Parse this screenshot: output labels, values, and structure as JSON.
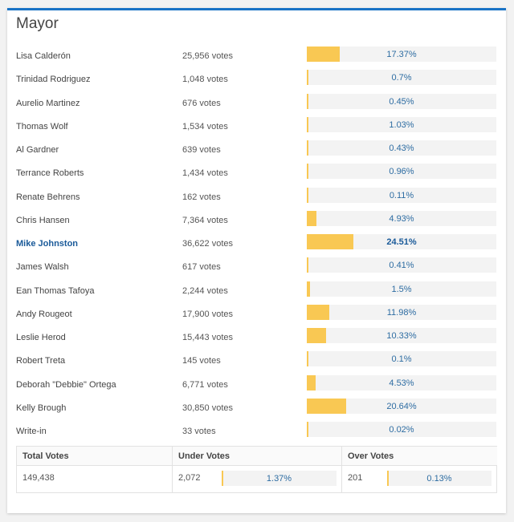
{
  "title": "Mayor",
  "accent_color": "#1a73c6",
  "bar_color": "#f9c853",
  "candidates": [
    {
      "name": "Lisa Calderón",
      "votes": "25,956 votes",
      "percent": "17.37%",
      "value": 17.37
    },
    {
      "name": "Trinidad Rodriguez",
      "votes": "1,048 votes",
      "percent": "0.7%",
      "value": 0.7
    },
    {
      "name": "Aurelio Martinez",
      "votes": "676 votes",
      "percent": "0.45%",
      "value": 0.45
    },
    {
      "name": "Thomas Wolf",
      "votes": "1,534 votes",
      "percent": "1.03%",
      "value": 1.03
    },
    {
      "name": "Al Gardner",
      "votes": "639 votes",
      "percent": "0.43%",
      "value": 0.43
    },
    {
      "name": "Terrance Roberts",
      "votes": "1,434 votes",
      "percent": "0.96%",
      "value": 0.96
    },
    {
      "name": "Renate Behrens",
      "votes": "162 votes",
      "percent": "0.11%",
      "value": 0.11
    },
    {
      "name": "Chris Hansen",
      "votes": "7,364 votes",
      "percent": "4.93%",
      "value": 4.93
    },
    {
      "name": "Mike Johnston",
      "votes": "36,622 votes",
      "percent": "24.51%",
      "value": 24.51,
      "winner": true
    },
    {
      "name": "James Walsh",
      "votes": "617 votes",
      "percent": "0.41%",
      "value": 0.41
    },
    {
      "name": "Ean Thomas Tafoya",
      "votes": "2,244 votes",
      "percent": "1.5%",
      "value": 1.5
    },
    {
      "name": "Andy Rougeot",
      "votes": "17,900 votes",
      "percent": "11.98%",
      "value": 11.98
    },
    {
      "name": "Leslie Herod",
      "votes": "15,443 votes",
      "percent": "10.33%",
      "value": 10.33
    },
    {
      "name": "Robert Treta",
      "votes": "145 votes",
      "percent": "0.1%",
      "value": 0.1
    },
    {
      "name": "Deborah \"Debbie\" Ortega",
      "votes": "6,771 votes",
      "percent": "4.53%",
      "value": 4.53
    },
    {
      "name": "Kelly Brough",
      "votes": "30,850 votes",
      "percent": "20.64%",
      "value": 20.64
    },
    {
      "name": "Write-in",
      "votes": "33 votes",
      "percent": "0.02%",
      "value": 0.02
    }
  ],
  "summary": {
    "total": {
      "label": "Total Votes",
      "value": "149,438"
    },
    "under": {
      "label": "Under Votes",
      "value": "2,072",
      "percent": "1.37%"
    },
    "over": {
      "label": "Over Votes",
      "value": "201",
      "percent": "0.13%"
    }
  }
}
